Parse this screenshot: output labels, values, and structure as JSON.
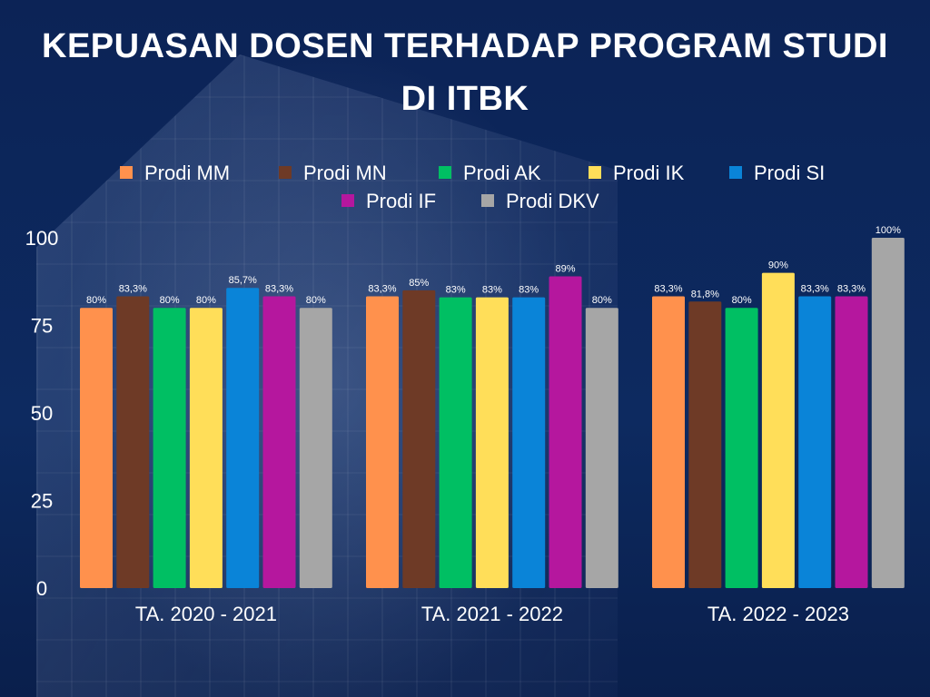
{
  "title_line1": "KEPUASAN DOSEN TERHADAP PROGRAM STUDI",
  "title_line2": "DI ITBK",
  "chart_data": {
    "type": "bar",
    "title": "KEPUASAN DOSEN TERHADAP PROGRAM STUDI DI ITBK",
    "categories": [
      "TA. 2020 - 2021",
      "TA. 2021 - 2022",
      "TA. 2022 - 2023"
    ],
    "ylim": [
      0,
      100
    ],
    "yticks": [
      "0",
      "25",
      "50",
      "75",
      "100"
    ],
    "grid": false,
    "legend_position": "top",
    "series": [
      {
        "name": "Prodi MM",
        "color": "#ff914d",
        "values": [
          80,
          83.3,
          83.3
        ],
        "labels": [
          "80%",
          "83,3%",
          "83,3%"
        ]
      },
      {
        "name": "Prodi MN",
        "color": "#6e3a26",
        "values": [
          83.3,
          85,
          81.8
        ],
        "labels": [
          "83,3%",
          "85%",
          "81,8%"
        ]
      },
      {
        "name": "Prodi AK",
        "color": "#00bf63",
        "values": [
          80,
          83,
          80
        ],
        "labels": [
          "80%",
          "83%",
          "80%"
        ]
      },
      {
        "name": "Prodi IK",
        "color": "#ffde59",
        "values": [
          80,
          83,
          90
        ],
        "labels": [
          "80%",
          "83%",
          "90%"
        ]
      },
      {
        "name": "Prodi SI",
        "color": "#0a84d8",
        "values": [
          85.7,
          83,
          83.3
        ],
        "labels": [
          "85,7%",
          "83%",
          "83,3%"
        ]
      },
      {
        "name": "Prodi IF",
        "color": "#b5179e",
        "values": [
          83.3,
          89,
          83.3
        ],
        "labels": [
          "83,3%",
          "89%",
          "83,3%"
        ]
      },
      {
        "name": "Prodi DKV",
        "color": "#a6a6a6",
        "values": [
          80,
          80,
          100
        ],
        "labels": [
          "80%",
          "80%",
          "100%"
        ]
      }
    ]
  }
}
